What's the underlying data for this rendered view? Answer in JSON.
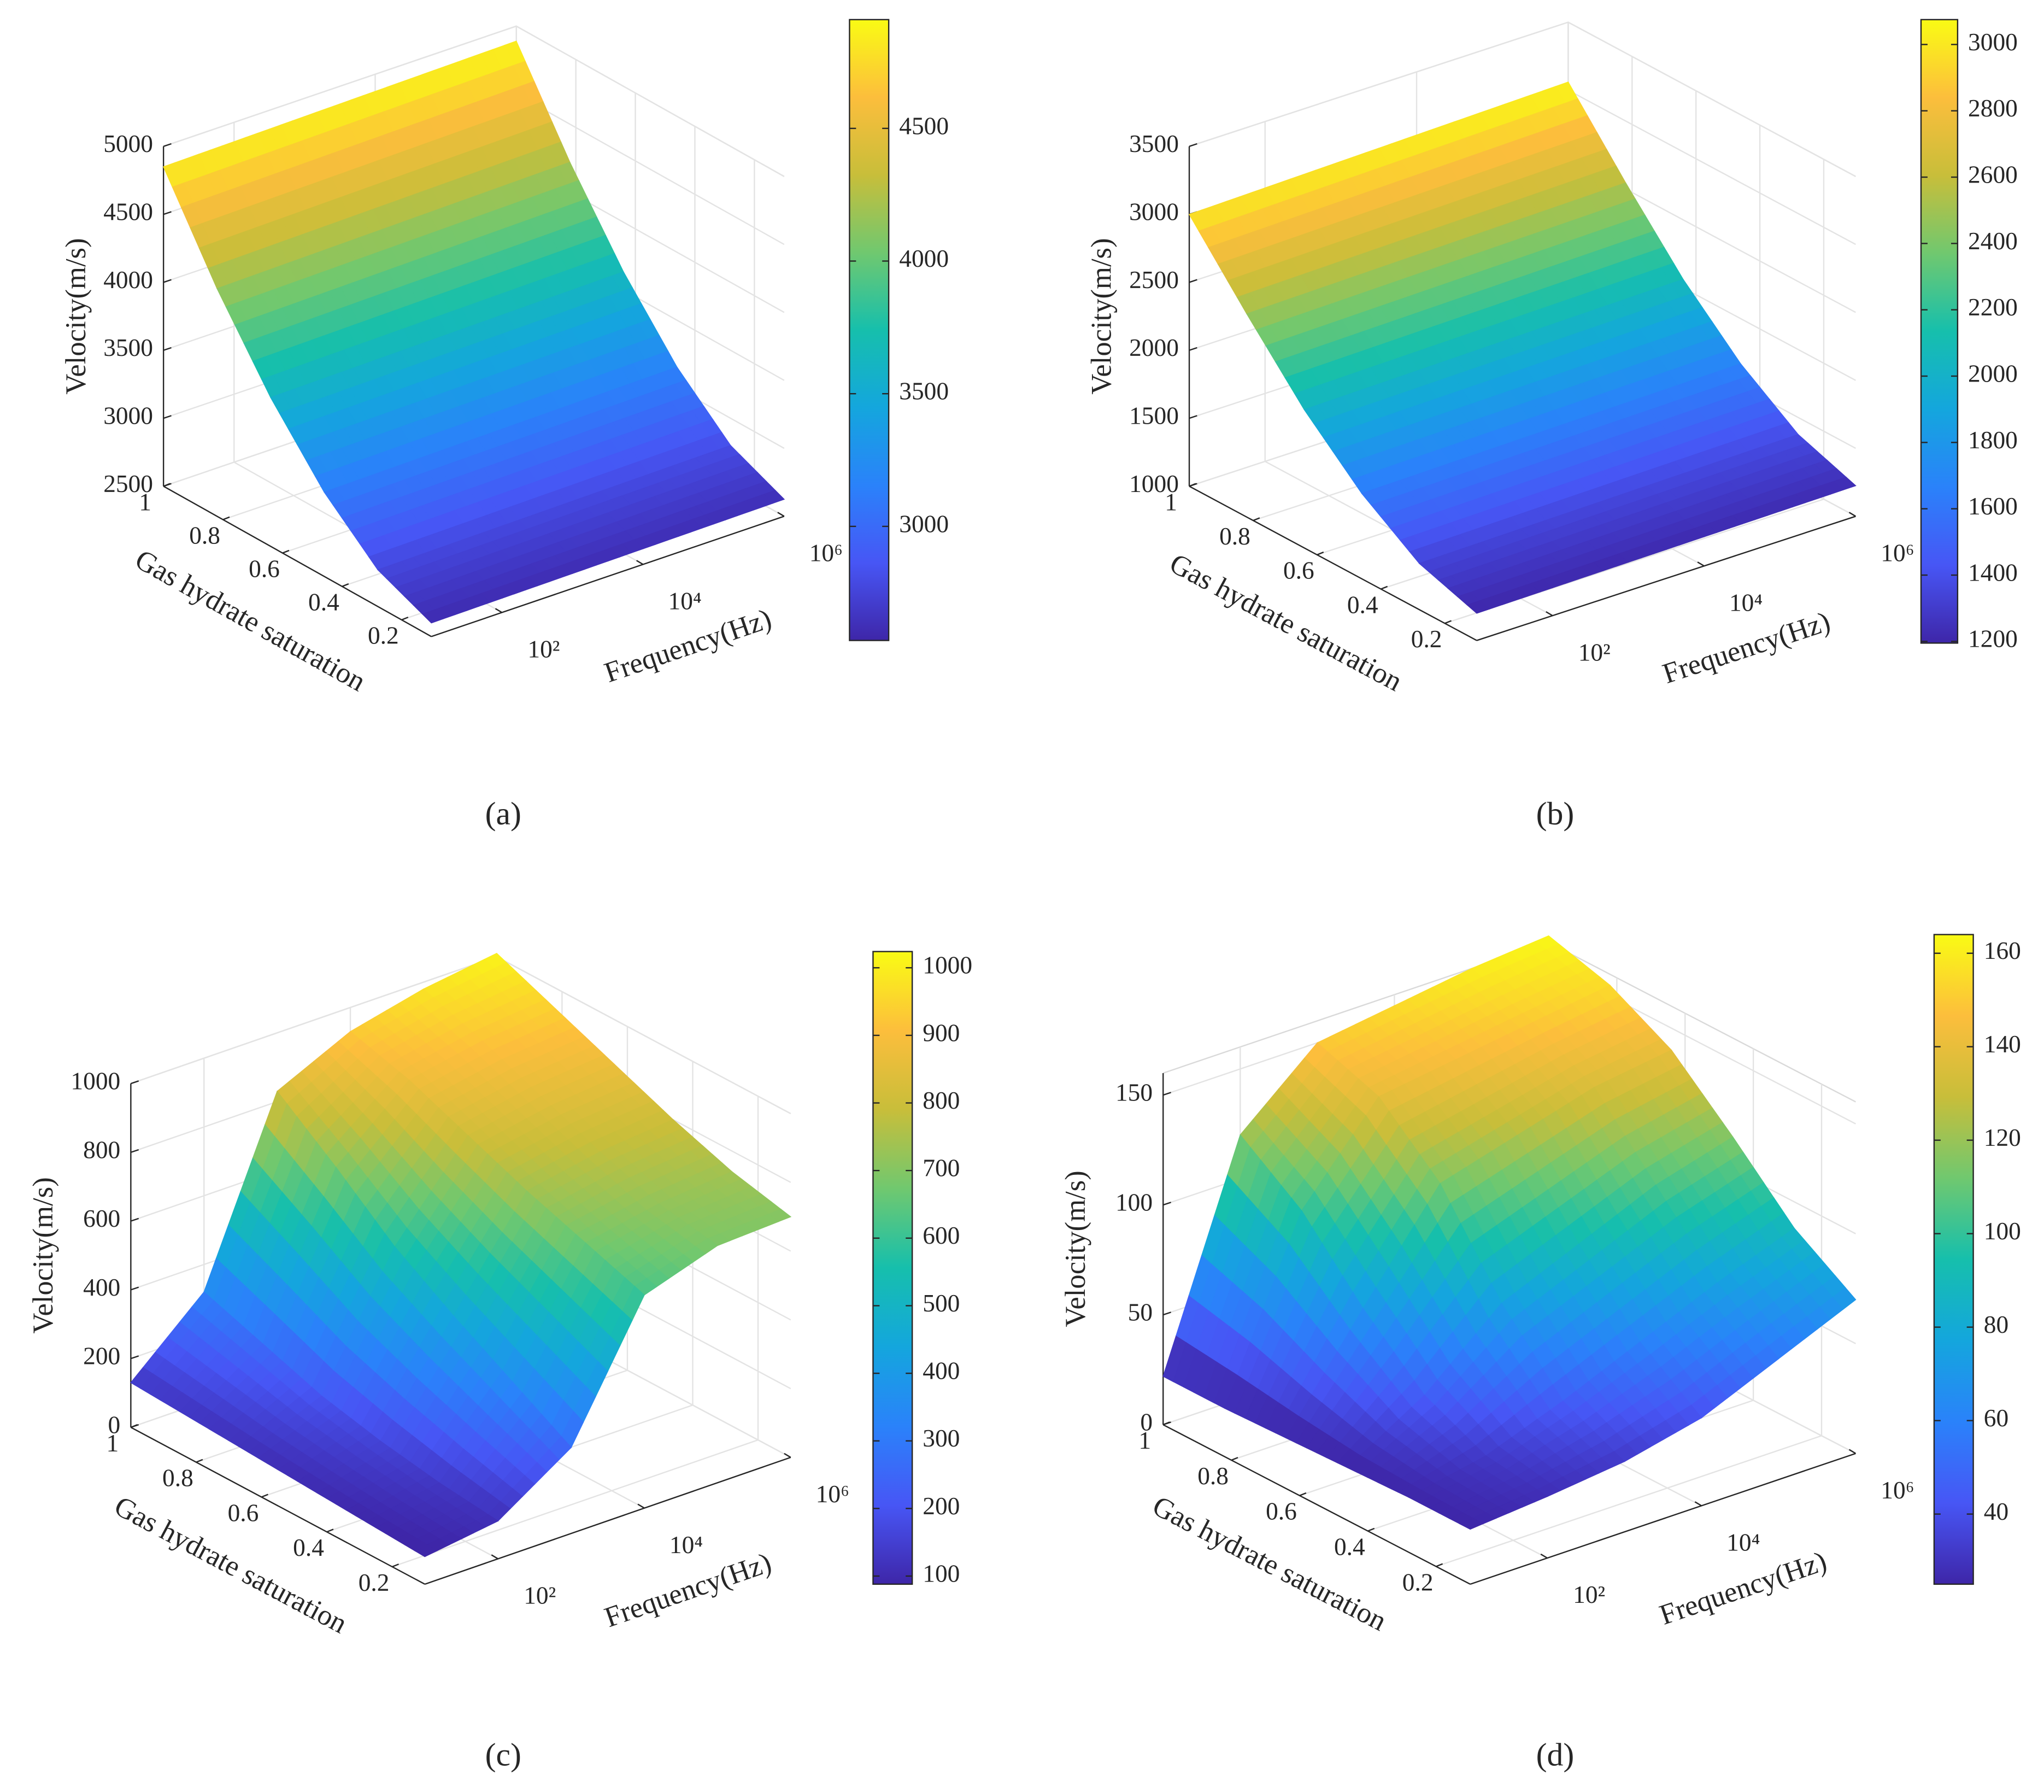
{
  "chart_data": [
    {
      "type": "surface",
      "panel_label": "(a)",
      "colormap": "parula",
      "grid": true,
      "xlabel": "Frequency(Hz)",
      "ylabel": "Gas hydrate saturation",
      "zlabel": "Velocity(m/s)",
      "x": [
        10,
        100,
        1000,
        10000,
        100000,
        1000000
      ],
      "xscale": "log",
      "xlim": [
        10,
        1000000
      ],
      "xticks": [
        {
          "value": 100,
          "label": "10²"
        },
        {
          "value": 10000,
          "label": "10⁴"
        },
        {
          "value": 1000000,
          "label": "10⁶"
        }
      ],
      "y": [
        0.1,
        0.28,
        0.46,
        0.64,
        0.82,
        1.0
      ],
      "ylim": [
        0.1,
        1
      ],
      "yticks": [
        0.2,
        0.4,
        0.6,
        0.8,
        1
      ],
      "zlim": [
        2500,
        5000
      ],
      "zticks": [
        2500,
        3000,
        3500,
        4000,
        4500,
        5000
      ],
      "z": [
        [
          2600,
          2605,
          2610,
          2615,
          2620,
          2625
        ],
        [
          2770,
          2776,
          2782,
          2788,
          2794,
          2800
        ],
        [
          3120,
          3127,
          3134,
          3141,
          3148,
          3155
        ],
        [
          3595,
          3603,
          3611,
          3619,
          3627,
          3635
        ],
        [
          4175,
          4184,
          4193,
          4202,
          4211,
          4220
        ],
        [
          4850,
          4858,
          4866,
          4874,
          4882,
          4890
        ]
      ],
      "clim": [
        2570,
        4910
      ],
      "cticks": [
        3000,
        3500,
        4000,
        4500
      ]
    },
    {
      "type": "surface",
      "panel_label": "(b)",
      "colormap": "parula",
      "grid": true,
      "xlabel": "Frequency(Hz)",
      "ylabel": "Gas hydrate saturation",
      "zlabel": "Velocity(m/s)",
      "x": [
        10,
        100,
        1000,
        10000,
        100000,
        1000000
      ],
      "xscale": "log",
      "xlim": [
        10,
        1000000
      ],
      "xticks": [
        {
          "value": 100,
          "label": "10²"
        },
        {
          "value": 10000,
          "label": "10⁴"
        },
        {
          "value": 1000000,
          "label": "10⁶"
        }
      ],
      "y": [
        0.1,
        0.28,
        0.46,
        0.64,
        0.82,
        1.0
      ],
      "ylim": [
        0.1,
        1
      ],
      "yticks": [
        0.2,
        0.4,
        0.6,
        0.8,
        1
      ],
      "zlim": [
        1000,
        3500
      ],
      "zticks": [
        1000,
        1500,
        2000,
        2500,
        3000,
        3500
      ],
      "z": [
        [
          1200,
          1205,
          1210,
          1215,
          1220,
          1225
        ],
        [
          1340,
          1347,
          1354,
          1361,
          1368,
          1375
        ],
        [
          1628,
          1636,
          1644,
          1652,
          1660,
          1668
        ],
        [
          2017,
          2026,
          2035,
          2044,
          2053,
          2062
        ],
        [
          2495,
          2505,
          2515,
          2525,
          2535,
          2545
        ],
        [
          3000,
          3012,
          3024,
          3036,
          3048,
          3060
        ]
      ],
      "clim": [
        1195,
        3075
      ],
      "cticks": [
        1200,
        1400,
        1600,
        1800,
        2000,
        2200,
        2400,
        2600,
        2800,
        3000
      ]
    },
    {
      "type": "surface",
      "panel_label": "(c)",
      "colormap": "parula",
      "grid": true,
      "xlabel": "Frequency(Hz)",
      "ylabel": "Gas hydrate saturation",
      "zlabel": "Velocity(m/s)",
      "x": [
        10,
        100,
        1000,
        10000,
        100000,
        1000000
      ],
      "xscale": "log",
      "xlim": [
        10,
        1000000
      ],
      "xticks": [
        {
          "value": 100,
          "label": "10²"
        },
        {
          "value": 10000,
          "label": "10⁴"
        },
        {
          "value": 1000000,
          "label": "10⁶"
        }
      ],
      "y": [
        0.1,
        0.28,
        0.46,
        0.64,
        0.82,
        1.0
      ],
      "ylim": [
        0.1,
        1
      ],
      "yticks": [
        0.2,
        0.4,
        0.6,
        0.8,
        1
      ],
      "zlim": [
        0,
        1000
      ],
      "zticks": [
        0,
        200,
        400,
        600,
        800,
        1000
      ],
      "z": [
        [
          80,
          110,
          250,
          620,
          690,
          700
        ],
        [
          90,
          130,
          350,
          680,
          720,
          740
        ],
        [
          100,
          160,
          450,
          740,
          780,
          800
        ],
        [
          110,
          200,
          560,
          810,
          850,
          870
        ],
        [
          120,
          260,
          700,
          880,
          920,
          940
        ],
        [
          130,
          320,
          830,
          930,
          980,
          1010
        ]
      ],
      "clim": [
        88,
        1024
      ],
      "cticks": [
        100,
        200,
        300,
        400,
        500,
        600,
        700,
        800,
        900,
        1000
      ]
    },
    {
      "type": "surface",
      "panel_label": "(d)",
      "colormap": "parula",
      "grid": true,
      "xlabel": "Frequency(Hz)",
      "ylabel": "Gas hydrate saturation",
      "zlabel": "Velocity(m/s)",
      "x": [
        10,
        100,
        1000,
        10000,
        100000,
        1000000
      ],
      "xscale": "log",
      "xlim": [
        10,
        1000000
      ],
      "xticks": [
        {
          "value": 100,
          "label": "10²"
        },
        {
          "value": 10000,
          "label": "10⁴"
        },
        {
          "value": 1000000,
          "label": "10⁶"
        }
      ],
      "y": [
        0.1,
        0.28,
        0.46,
        0.64,
        0.82,
        1.0
      ],
      "ylim": [
        0.1,
        1
      ],
      "yticks": [
        0.2,
        0.4,
        0.6,
        0.8,
        1
      ],
      "zlim": [
        0,
        160
      ],
      "zticks": [
        0,
        50,
        100,
        150
      ],
      "z": [
        [
          25,
          28,
          32,
          40,
          55,
          70
        ],
        [
          25,
          32,
          45,
          60,
          75,
          88
        ],
        [
          24,
          45,
          75,
          90,
          105,
          115
        ],
        [
          23,
          70,
          115,
          125,
          135,
          140
        ],
        [
          22,
          100,
          140,
          145,
          150,
          155
        ],
        [
          22,
          120,
          150,
          155,
          160,
          163
        ]
      ],
      "clim": [
        25,
        164
      ],
      "cticks": [
        40,
        60,
        80,
        100,
        120,
        140,
        160
      ]
    }
  ]
}
